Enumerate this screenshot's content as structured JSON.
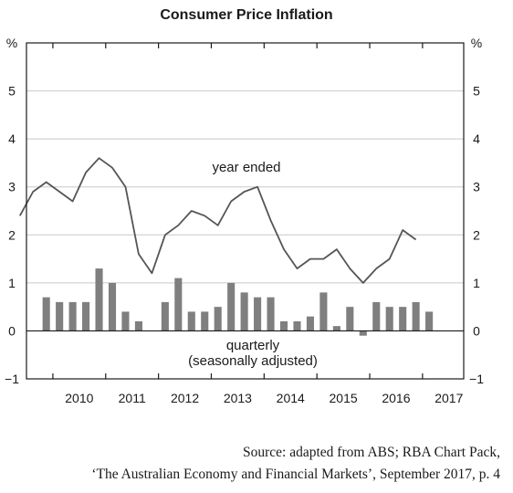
{
  "chart_data": {
    "type": "bar+line",
    "title": "Consumer Price Inflation",
    "y_unit_left": "%",
    "y_unit_right": "%",
    "ylim": [
      -1,
      6
    ],
    "y_ticks": [
      5,
      4,
      3,
      2,
      1,
      0,
      -1
    ],
    "y_tick_labels": [
      "5",
      "4",
      "3",
      "2",
      "1",
      "0",
      "−1"
    ],
    "x_range": [
      2009.5,
      2017.78
    ],
    "x_year_labels": [
      "2010",
      "2011",
      "2012",
      "2013",
      "2014",
      "2015",
      "2016",
      "2017"
    ],
    "grid": "horizontal",
    "legend": "inline-annotations",
    "colors": {
      "bars": "#7f7f7f",
      "line": "#555555",
      "axis": "#1a1a1a",
      "grid": "#c8c8c8"
    },
    "series": [
      {
        "name": "year ended",
        "kind": "line",
        "x": [
          "2009-Q2",
          "2009-Q3",
          "2009-Q4",
          "2010-Q1",
          "2010-Q2",
          "2010-Q3",
          "2010-Q4",
          "2011-Q1",
          "2011-Q2",
          "2011-Q3",
          "2011-Q4",
          "2012-Q1",
          "2012-Q2",
          "2012-Q3",
          "2012-Q4",
          "2013-Q1",
          "2013-Q2",
          "2013-Q3",
          "2013-Q4",
          "2014-Q1",
          "2014-Q2",
          "2014-Q3",
          "2014-Q4",
          "2015-Q1",
          "2015-Q2",
          "2015-Q3",
          "2015-Q4",
          "2016-Q1",
          "2016-Q2",
          "2016-Q3",
          "2016-Q4",
          "2017-Q1",
          "2017-Q2"
        ],
        "values": [
          2.4,
          2.9,
          3.1,
          2.9,
          2.7,
          3.3,
          3.6,
          3.4,
          3.0,
          1.6,
          1.2,
          2.0,
          2.2,
          2.5,
          2.4,
          2.2,
          2.7,
          2.9,
          3.0,
          2.3,
          1.7,
          1.3,
          1.5,
          1.5,
          1.7,
          1.3,
          1.0,
          1.3,
          1.5,
          2.1,
          1.9,
          null,
          null
        ]
      },
      {
        "name": "quarterly (seasonally adjusted)",
        "kind": "bar",
        "x": [
          "2009-Q4",
          "2010-Q1",
          "2010-Q2",
          "2010-Q3",
          "2010-Q4",
          "2011-Q1",
          "2011-Q2",
          "2011-Q3",
          "2011-Q4",
          "2012-Q1",
          "2012-Q2",
          "2012-Q3",
          "2012-Q4",
          "2013-Q1",
          "2013-Q2",
          "2013-Q3",
          "2013-Q4",
          "2014-Q1",
          "2014-Q2",
          "2014-Q3",
          "2014-Q4",
          "2015-Q1",
          "2015-Q2",
          "2015-Q3",
          "2015-Q4",
          "2016-Q1",
          "2016-Q2",
          "2016-Q3",
          "2016-Q4",
          "2017-Q1",
          "2017-Q2"
        ],
        "values": [
          0.7,
          0.6,
          0.6,
          0.6,
          1.3,
          1.0,
          0.4,
          0.2,
          0.0,
          0.6,
          1.1,
          0.4,
          0.4,
          0.5,
          1.0,
          0.8,
          0.7,
          0.7,
          0.2,
          0.2,
          0.3,
          0.8,
          0.1,
          0.5,
          -0.1,
          0.6,
          0.5,
          0.5,
          0.6,
          0.4,
          null
        ]
      }
    ],
    "annotations": {
      "line_label": "year ended",
      "bar_label_line1": "quarterly",
      "bar_label_line2": "(seasonally adjusted)"
    }
  },
  "source": {
    "line1": "Source: adapted from ABS; RBA Chart Pack,",
    "line2": "‘The Australian Economy and Financial Markets’, September 2017, p. 4"
  }
}
